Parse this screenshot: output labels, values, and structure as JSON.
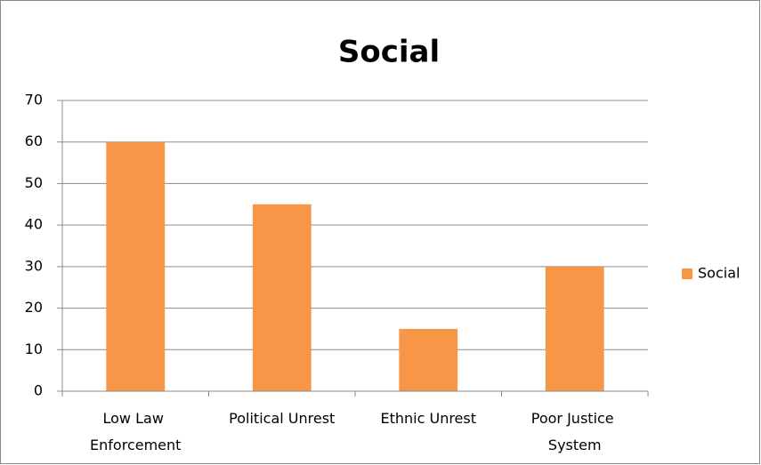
{
  "chart_data": {
    "type": "bar",
    "title": "Social",
    "categories": [
      "Low Law Enforcement",
      "Political Unrest",
      "Ethnic Unrest",
      "Poor Justice System"
    ],
    "series": [
      {
        "name": "Social",
        "color": "#f79646",
        "values": [
          60,
          45,
          15,
          30
        ]
      }
    ],
    "ylim": [
      0,
      70
    ],
    "yticks": [
      0,
      10,
      20,
      30,
      40,
      50,
      60,
      70
    ],
    "grid": true,
    "legend": "right"
  }
}
